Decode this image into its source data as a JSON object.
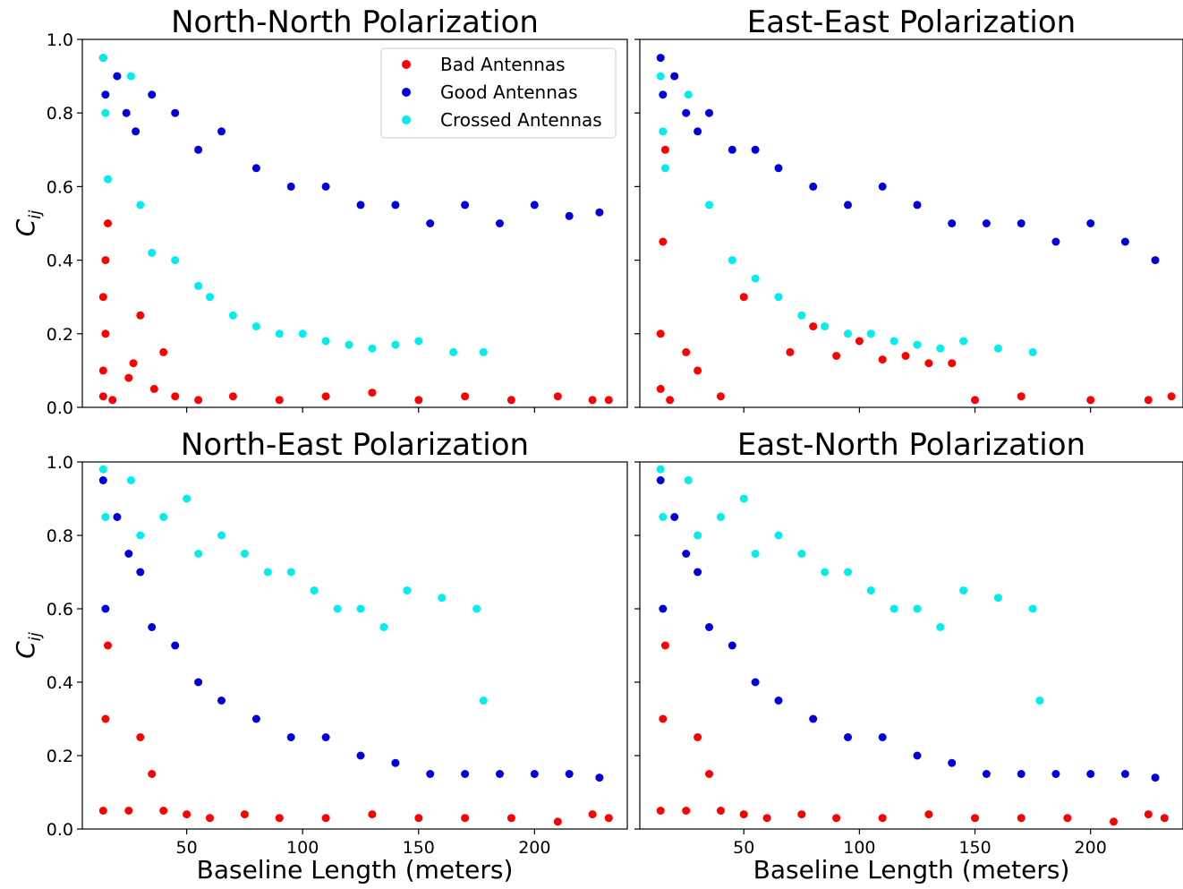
{
  "colors": {
    "bad": "#ff0000",
    "good": "#0000dd",
    "crossed": "#00eeee",
    "axes": "#000000",
    "background": "#ffffff"
  },
  "x_axis_label": "Baseline Length (meters)",
  "y_axis_label": "C",
  "y_axis_label_subscript": "ij",
  "legend": {
    "placement": "top-right",
    "panel": 0,
    "entries": [
      {
        "series": "bad",
        "label": "Bad Antennas"
      },
      {
        "series": "good",
        "label": "Good Antennas"
      },
      {
        "series": "crossed",
        "label": "Crossed Antennas"
      }
    ]
  },
  "chart_data": [
    {
      "type": "scatter",
      "title": "North-North Polarization",
      "xlabel": "",
      "ylabel": "C_ij",
      "xlim": [
        5,
        240
      ],
      "ylim": [
        0,
        1
      ],
      "xticks": [
        50,
        100,
        150,
        200
      ],
      "yticks": [
        0.0,
        0.2,
        0.4,
        0.6,
        0.8,
        1.0
      ],
      "show_xtick_labels": false,
      "show_ytick_labels": true,
      "grid": false,
      "series": [
        {
          "name": "Bad Antennas",
          "key": "bad",
          "x": [
            14,
            14,
            15,
            15,
            16,
            18,
            14,
            25,
            27,
            30,
            36,
            40,
            45,
            55,
            70,
            90,
            110,
            130,
            150,
            170,
            190,
            210,
            225,
            232
          ],
          "y": [
            0.03,
            0.1,
            0.2,
            0.4,
            0.5,
            0.02,
            0.3,
            0.08,
            0.12,
            0.25,
            0.05,
            0.15,
            0.03,
            0.02,
            0.03,
            0.02,
            0.03,
            0.04,
            0.02,
            0.03,
            0.02,
            0.03,
            0.02,
            0.02
          ]
        },
        {
          "name": "Good Antennas",
          "key": "good",
          "x": [
            14,
            15,
            20,
            24,
            28,
            35,
            45,
            55,
            65,
            80,
            95,
            110,
            125,
            140,
            155,
            170,
            185,
            200,
            215,
            228
          ],
          "y": [
            0.95,
            0.85,
            0.9,
            0.8,
            0.75,
            0.85,
            0.8,
            0.7,
            0.75,
            0.65,
            0.6,
            0.6,
            0.55,
            0.55,
            0.5,
            0.55,
            0.5,
            0.55,
            0.52,
            0.53
          ]
        },
        {
          "name": "Crossed Antennas",
          "key": "crossed",
          "x": [
            14,
            15,
            16,
            26,
            30,
            35,
            45,
            55,
            60,
            70,
            80,
            90,
            100,
            110,
            120,
            130,
            140,
            150,
            165,
            178
          ],
          "y": [
            0.95,
            0.8,
            0.62,
            0.9,
            0.55,
            0.42,
            0.4,
            0.33,
            0.3,
            0.25,
            0.22,
            0.2,
            0.2,
            0.18,
            0.17,
            0.16,
            0.17,
            0.18,
            0.15,
            0.15
          ]
        }
      ]
    },
    {
      "type": "scatter",
      "title": "East-East Polarization",
      "xlabel": "",
      "ylabel": "",
      "xlim": [
        5,
        240
      ],
      "ylim": [
        0,
        1
      ],
      "xticks": [
        50,
        100,
        150,
        200
      ],
      "yticks": [
        0.0,
        0.2,
        0.4,
        0.6,
        0.8,
        1.0
      ],
      "show_xtick_labels": false,
      "show_ytick_labels": false,
      "grid": false,
      "series": [
        {
          "name": "Bad Antennas",
          "key": "bad",
          "x": [
            14,
            14,
            15,
            16,
            18,
            25,
            30,
            40,
            50,
            70,
            90,
            110,
            130,
            150,
            170,
            200,
            225,
            235,
            80,
            100,
            120,
            140
          ],
          "y": [
            0.05,
            0.2,
            0.45,
            0.7,
            0.02,
            0.15,
            0.1,
            0.03,
            0.3,
            0.15,
            0.14,
            0.13,
            0.12,
            0.02,
            0.03,
            0.02,
            0.02,
            0.03,
            0.22,
            0.18,
            0.14,
            0.12
          ]
        },
        {
          "name": "Good Antennas",
          "key": "good",
          "x": [
            14,
            15,
            20,
            25,
            30,
            35,
            45,
            55,
            65,
            80,
            95,
            110,
            125,
            140,
            155,
            170,
            185,
            200,
            215,
            228
          ],
          "y": [
            0.95,
            0.85,
            0.9,
            0.8,
            0.75,
            0.8,
            0.7,
            0.7,
            0.65,
            0.6,
            0.55,
            0.6,
            0.55,
            0.5,
            0.5,
            0.5,
            0.45,
            0.5,
            0.45,
            0.4
          ]
        },
        {
          "name": "Crossed Antennas",
          "key": "crossed",
          "x": [
            14,
            15,
            16,
            26,
            35,
            45,
            55,
            65,
            75,
            85,
            95,
            105,
            115,
            125,
            135,
            145,
            160,
            175
          ],
          "y": [
            0.9,
            0.75,
            0.65,
            0.85,
            0.55,
            0.4,
            0.35,
            0.3,
            0.25,
            0.22,
            0.2,
            0.2,
            0.18,
            0.17,
            0.16,
            0.18,
            0.16,
            0.15
          ]
        }
      ]
    },
    {
      "type": "scatter",
      "title": "North-East Polarization",
      "xlabel": "Baseline Length (meters)",
      "ylabel": "C_ij",
      "xlim": [
        5,
        240
      ],
      "ylim": [
        0,
        1
      ],
      "xticks": [
        50,
        100,
        150,
        200
      ],
      "yticks": [
        0.0,
        0.2,
        0.4,
        0.6,
        0.8,
        1.0
      ],
      "show_xtick_labels": true,
      "show_ytick_labels": true,
      "grid": false,
      "series": [
        {
          "name": "Bad Antennas",
          "key": "bad",
          "x": [
            14,
            15,
            16,
            25,
            30,
            35,
            40,
            50,
            60,
            75,
            90,
            110,
            130,
            150,
            170,
            190,
            210,
            225,
            232
          ],
          "y": [
            0.05,
            0.3,
            0.5,
            0.05,
            0.25,
            0.15,
            0.05,
            0.04,
            0.03,
            0.04,
            0.03,
            0.03,
            0.04,
            0.03,
            0.03,
            0.03,
            0.02,
            0.04,
            0.03
          ]
        },
        {
          "name": "Good Antennas",
          "key": "good",
          "x": [
            14,
            15,
            20,
            25,
            30,
            35,
            45,
            55,
            65,
            80,
            95,
            110,
            125,
            140,
            155,
            170,
            185,
            200,
            215,
            228
          ],
          "y": [
            0.95,
            0.6,
            0.85,
            0.75,
            0.7,
            0.55,
            0.5,
            0.4,
            0.35,
            0.3,
            0.25,
            0.25,
            0.2,
            0.18,
            0.15,
            0.15,
            0.15,
            0.15,
            0.15,
            0.14
          ]
        },
        {
          "name": "Crossed Antennas",
          "key": "crossed",
          "x": [
            14,
            15,
            26,
            30,
            40,
            50,
            55,
            65,
            75,
            85,
            95,
            105,
            115,
            125,
            135,
            145,
            160,
            175,
            178
          ],
          "y": [
            0.98,
            0.85,
            0.95,
            0.8,
            0.85,
            0.9,
            0.75,
            0.8,
            0.75,
            0.7,
            0.7,
            0.65,
            0.6,
            0.6,
            0.55,
            0.65,
            0.63,
            0.6,
            0.35
          ]
        }
      ]
    },
    {
      "type": "scatter",
      "title": "East-North Polarization",
      "xlabel": "Baseline Length (meters)",
      "ylabel": "",
      "xlim": [
        5,
        240
      ],
      "ylim": [
        0,
        1
      ],
      "xticks": [
        50,
        100,
        150,
        200
      ],
      "yticks": [
        0.0,
        0.2,
        0.4,
        0.6,
        0.8,
        1.0
      ],
      "show_xtick_labels": true,
      "show_ytick_labels": false,
      "grid": false,
      "series": [
        {
          "name": "Bad Antennas",
          "key": "bad",
          "x": [
            14,
            15,
            16,
            25,
            30,
            35,
            40,
            50,
            60,
            75,
            90,
            110,
            130,
            150,
            170,
            190,
            210,
            225,
            232
          ],
          "y": [
            0.05,
            0.3,
            0.5,
            0.05,
            0.25,
            0.15,
            0.05,
            0.04,
            0.03,
            0.04,
            0.03,
            0.03,
            0.04,
            0.03,
            0.03,
            0.03,
            0.02,
            0.04,
            0.03
          ]
        },
        {
          "name": "Good Antennas",
          "key": "good",
          "x": [
            14,
            15,
            20,
            25,
            30,
            35,
            45,
            55,
            65,
            80,
            95,
            110,
            125,
            140,
            155,
            170,
            185,
            200,
            215,
            228
          ],
          "y": [
            0.95,
            0.6,
            0.85,
            0.75,
            0.7,
            0.55,
            0.5,
            0.4,
            0.35,
            0.3,
            0.25,
            0.25,
            0.2,
            0.18,
            0.15,
            0.15,
            0.15,
            0.15,
            0.15,
            0.14
          ]
        },
        {
          "name": "Crossed Antennas",
          "key": "crossed",
          "x": [
            14,
            15,
            26,
            30,
            40,
            50,
            55,
            65,
            75,
            85,
            95,
            105,
            115,
            125,
            135,
            145,
            160,
            175,
            178
          ],
          "y": [
            0.98,
            0.85,
            0.95,
            0.8,
            0.85,
            0.9,
            0.75,
            0.8,
            0.75,
            0.7,
            0.7,
            0.65,
            0.6,
            0.6,
            0.55,
            0.65,
            0.63,
            0.6,
            0.35
          ]
        }
      ]
    }
  ]
}
